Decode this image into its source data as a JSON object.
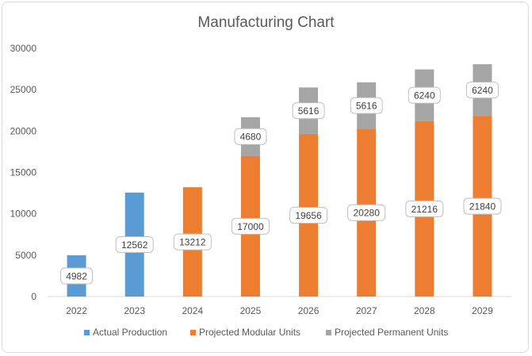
{
  "chart_data": {
    "type": "bar",
    "stacked": true,
    "title": "Manufacturing Chart",
    "xlabel": "",
    "ylabel": "",
    "ylim": [
      0,
      30000
    ],
    "yticks": [
      0,
      5000,
      10000,
      15000,
      20000,
      25000,
      30000
    ],
    "categories": [
      "2022",
      "2023",
      "2024",
      "2025",
      "2026",
      "2027",
      "2028",
      "2029"
    ],
    "series": [
      {
        "name": "Actual Production",
        "color": "#5b9bd5",
        "values": [
          4982,
          12562,
          null,
          null,
          null,
          null,
          null,
          null
        ]
      },
      {
        "name": "Projected Modular Units",
        "color": "#ed7d31",
        "values": [
          null,
          null,
          13212,
          17000,
          19656,
          20280,
          21216,
          21840
        ]
      },
      {
        "name": "Projected Permanent Units",
        "color": "#a5a5a5",
        "values": [
          null,
          null,
          null,
          4680,
          5616,
          5616,
          6240,
          6240
        ]
      }
    ],
    "grid": false,
    "legend_position": "bottom",
    "data_labels": true
  }
}
